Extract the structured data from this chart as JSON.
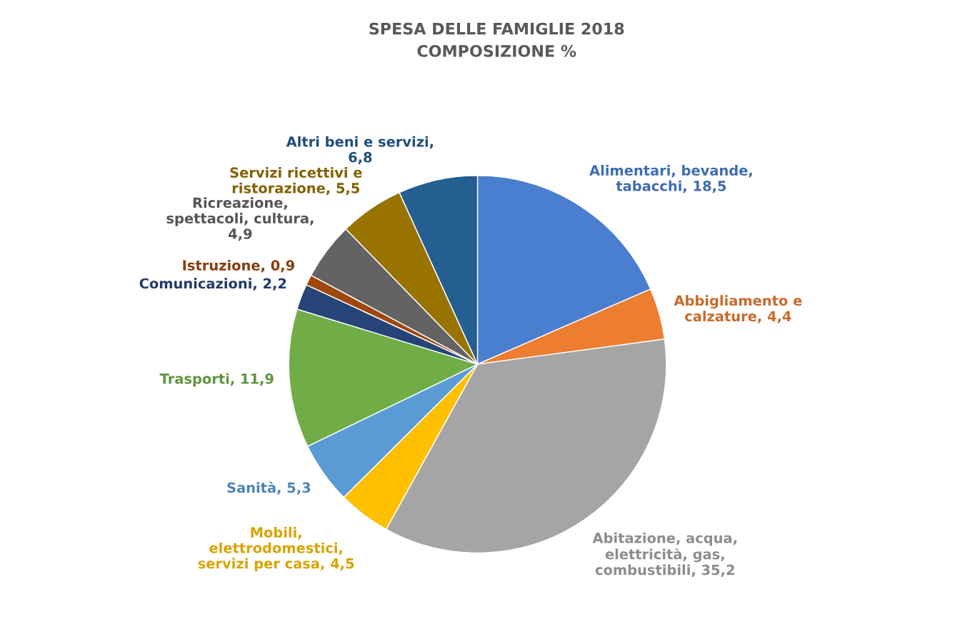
{
  "chart_data": {
    "type": "pie",
    "title": "SPESA DELLE FAMIGLIE 2018",
    "subtitle": "COMPOSIZIONE %",
    "categories": [
      "Alimentari, bevande, tabacchi, 18,5",
      "Abbigliamento e calzature, 4,4",
      "Abitazione, acqua, elettricità, gas, combustibili, 35,2",
      "Mobili, elettrodomestici, servizi per casa, 4,5",
      "Sanità, 5,3",
      "Trasporti, 11,9",
      "Comunicazioni, 2,2",
      "Istruzione, 0,9",
      "Ricreazione, spettacoli, cultura, 4,9",
      "Servizi ricettivi e ristorazione, 5,5",
      "Altri beni e servizi, 6,8"
    ],
    "values": [
      18.5,
      4.4,
      35.2,
      4.5,
      5.3,
      11.9,
      2.2,
      0.9,
      4.9,
      5.5,
      6.8
    ],
    "colors": [
      "#4a7fcf",
      "#ed7d31",
      "#a5a5a5",
      "#ffc000",
      "#5b9bd5",
      "#70ad47",
      "#264478",
      "#9e480e",
      "#636363",
      "#997300",
      "#255e91"
    ]
  }
}
